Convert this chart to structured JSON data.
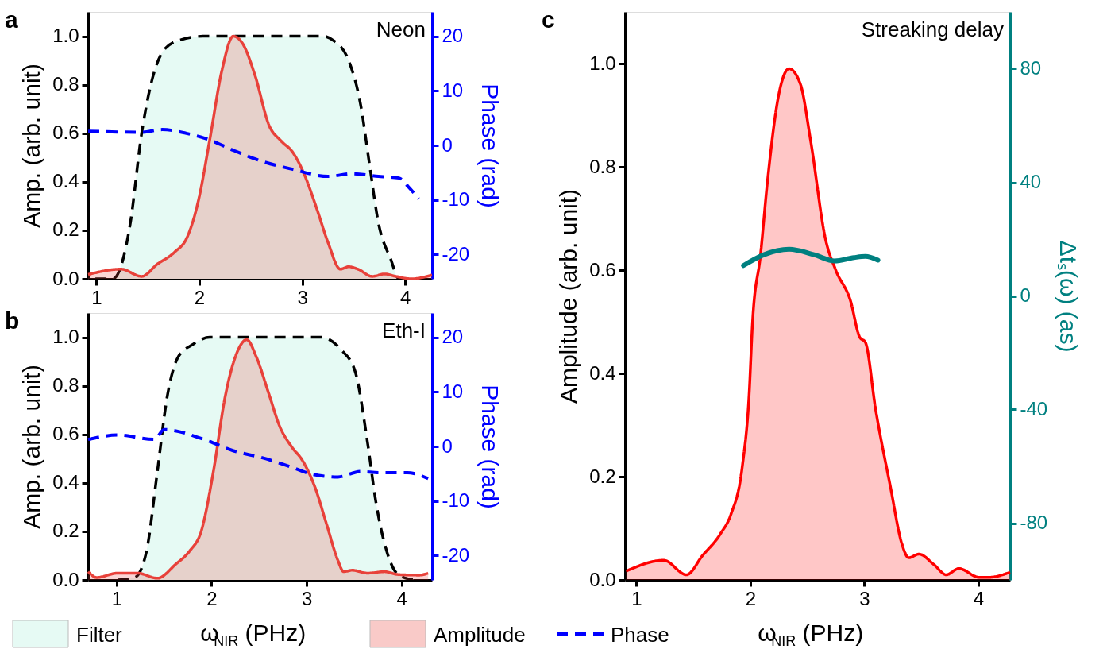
{
  "chart_data": [
    {
      "type": "line",
      "title": "a",
      "ylabel": "Amp. (arb. unit)",
      "y2label": "Phase (rad)",
      "annotations": [
        "Neon"
      ],
      "xlim": [
        0.92,
        4.26
      ],
      "xticks": [
        1,
        2,
        3,
        4
      ],
      "ylim": [
        0,
        1.1
      ],
      "yticks": [
        {
          "value": 0,
          "label": "0.0"
        },
        {
          "value": 0.2,
          "label": "0.2"
        },
        {
          "value": 0.4,
          "label": "0.4"
        },
        {
          "value": 0.6,
          "label": "0.6"
        },
        {
          "value": 0.8,
          "label": "0.8"
        },
        {
          "value": 1,
          "label": "1.0"
        }
      ],
      "y2lim": [
        -24.5,
        24.5
      ],
      "y2ticks": [
        -20,
        -10,
        0,
        10,
        20
      ],
      "series": [
        {
          "type": "area",
          "color": "#e6faf4",
          "line_style": "dashed",
          "x": [
            0.99,
            1.16,
            1.22,
            1.33,
            1.44,
            1.56,
            1.67,
            1.82,
            2.05,
            3.2,
            3.31,
            3.45,
            3.57,
            3.65,
            3.74,
            3.86,
            3.94,
            4.06
          ],
          "values": [
            0,
            0,
            0.03,
            0.23,
            0.6,
            0.85,
            0.95,
            0.985,
            1.0,
            1.0,
            0.98,
            0.9,
            0.71,
            0.48,
            0.23,
            0.08,
            0,
            0
          ]
        },
        {
          "type": "area",
          "color": "#e8413a",
          "x": [
            0.92,
            1.24,
            1.44,
            1.59,
            1.76,
            1.88,
            1.99,
            2.1,
            2.22,
            2.33,
            2.42,
            2.54,
            2.68,
            2.79,
            2.91,
            3.02,
            3.14,
            3.25,
            3.37,
            3.45,
            3.54,
            3.68,
            3.8,
            3.91,
            4.06,
            4.26
          ],
          "values": [
            0.018,
            0.04,
            0.01,
            0.06,
            0.11,
            0.17,
            0.32,
            0.57,
            0.86,
            1.0,
            0.97,
            0.84,
            0.63,
            0.57,
            0.52,
            0.43,
            0.29,
            0.15,
            0.04,
            0.05,
            0.04,
            0.01,
            0.02,
            0.01,
            0,
            0.016
          ]
        },
        {
          "type": "line",
          "color": "#0000ff",
          "line_style": "dashed",
          "axis": "y2",
          "x": [
            0.92,
            1.44,
            1.64,
            1.9,
            2.1,
            2.33,
            2.62,
            2.91,
            3.25,
            3.48,
            3.74,
            3.94,
            4.03,
            4.13
          ],
          "values": [
            2.6,
            2.4,
            2.9,
            2.1,
            1.0,
            -0.9,
            -3.0,
            -4.4,
            -5.7,
            -5.2,
            -5.7,
            -6.0,
            -7.6,
            -9.8
          ]
        }
      ]
    },
    {
      "type": "line",
      "title": "b",
      "xlabel": "ω$_{NIR}$ (PHz)",
      "ylabel": "Amp. (arb. unit)",
      "y2label": "Phase (rad)",
      "annotations": [
        "Eth-I"
      ],
      "legend": "bottom",
      "xlim": [
        0.7,
        4.32
      ],
      "xticks": [
        1,
        2,
        3,
        4
      ],
      "ylim": [
        0,
        1.1
      ],
      "yticks": [
        {
          "value": 0,
          "label": "0.0"
        },
        {
          "value": 0.2,
          "label": "0.2"
        },
        {
          "value": 0.4,
          "label": "0.4"
        },
        {
          "value": 0.6,
          "label": "0.6"
        },
        {
          "value": 0.8,
          "label": "0.8"
        },
        {
          "value": 1,
          "label": "1.0"
        }
      ],
      "y2lim": [
        -24.5,
        24.5
      ],
      "y2ticks": [
        -20,
        -10,
        0,
        10,
        20
      ],
      "series": [
        {
          "type": "area",
          "name": "Filter",
          "color": "#e6faf4",
          "line_style": "dashed",
          "x": [
            1.01,
            1.19,
            1.31,
            1.43,
            1.53,
            1.65,
            1.8,
            1.98,
            3.15,
            3.36,
            3.51,
            3.64,
            3.73,
            3.85,
            3.97,
            4.13
          ],
          "values": [
            0,
            0.01,
            0.11,
            0.45,
            0.75,
            0.92,
            0.97,
            1.0,
            1.0,
            0.95,
            0.86,
            0.57,
            0.32,
            0.11,
            0.02,
            0
          ]
        },
        {
          "type": "area",
          "name": "Amplitude",
          "color": "#e8413a",
          "x": [
            0.7,
            0.79,
            1.01,
            1.22,
            1.43,
            1.62,
            1.77,
            1.89,
            2.02,
            2.14,
            2.26,
            2.37,
            2.47,
            2.6,
            2.72,
            2.84,
            2.96,
            3.09,
            3.21,
            3.33,
            3.39,
            3.48,
            3.64,
            3.82,
            3.97,
            4.19,
            4.28
          ],
          "values": [
            0.034,
            0.01,
            0.028,
            0.028,
            0.007,
            0.064,
            0.12,
            0.2,
            0.45,
            0.75,
            0.93,
            0.99,
            0.92,
            0.77,
            0.63,
            0.55,
            0.49,
            0.38,
            0.23,
            0.08,
            0.034,
            0.04,
            0.028,
            0.034,
            0.022,
            0.02,
            0.028
          ]
        },
        {
          "type": "line",
          "name": "Phase",
          "color": "#0000ff",
          "line_style": "dashed",
          "axis": "y2",
          "x": [
            0.7,
            1.01,
            1.4,
            1.5,
            1.92,
            2.23,
            2.54,
            2.84,
            3.06,
            3.33,
            3.57,
            3.76,
            4.06,
            4.28
          ],
          "values": [
            1.3,
            2.1,
            1.3,
            3.1,
            1.3,
            -0.8,
            -2.1,
            -3.8,
            -5.1,
            -5.6,
            -4.6,
            -4.8,
            -4.8,
            -5.9
          ]
        }
      ]
    },
    {
      "type": "line",
      "title": "c",
      "xlabel": "ω$_{NIR}$ (PHz)",
      "ylabel": "Amplitude (arb. unit)",
      "y2label": "Δtₛ(ω) (as)",
      "annotations": [
        "Streaking delay"
      ],
      "xlim": [
        0.9,
        4.28
      ],
      "xticks": [
        1,
        2,
        3,
        4
      ],
      "ylim": [
        0,
        1.1
      ],
      "yticks": [
        {
          "value": 0,
          "label": "0.0"
        },
        {
          "value": 0.2,
          "label": "0.2"
        },
        {
          "value": 0.4,
          "label": "0.4"
        },
        {
          "value": 0.6,
          "label": "0.6"
        },
        {
          "value": 0.8,
          "label": "0.8"
        },
        {
          "value": 1,
          "label": "1.0"
        }
      ],
      "y2lim": [
        -100,
        100
      ],
      "y2ticks": [
        -80,
        -40,
        0,
        40,
        80
      ],
      "series": [
        {
          "type": "area",
          "color": "#ff0000",
          "x": [
            0.91,
            1.24,
            1.44,
            1.58,
            1.74,
            1.83,
            1.93,
            1.99,
            2.02,
            2.09,
            2.15,
            2.25,
            2.34,
            2.44,
            2.53,
            2.66,
            2.75,
            2.88,
            2.96,
            3.01,
            3.1,
            3.23,
            3.33,
            3.39,
            3.48,
            3.61,
            3.72,
            3.83,
            4.01,
            4.09,
            4.28
          ],
          "values": [
            0.017,
            0.038,
            0.01,
            0.047,
            0.09,
            0.127,
            0.22,
            0.36,
            0.5,
            0.63,
            0.77,
            0.94,
            0.99,
            0.96,
            0.85,
            0.66,
            0.6,
            0.54,
            0.47,
            0.46,
            0.33,
            0.18,
            0.07,
            0.043,
            0.05,
            0.03,
            0.01,
            0.022,
            0.005,
            0.005,
            0.015
          ]
        },
        {
          "type": "line",
          "color": "#008080",
          "axis": "y2",
          "x": [
            1.94,
            2.12,
            2.34,
            2.56,
            2.74,
            2.91,
            3.01,
            3.12
          ],
          "values": [
            10.7,
            14.5,
            16.4,
            14.5,
            12.3,
            13.5,
            13.9,
            12.6
          ]
        }
      ]
    }
  ]
}
